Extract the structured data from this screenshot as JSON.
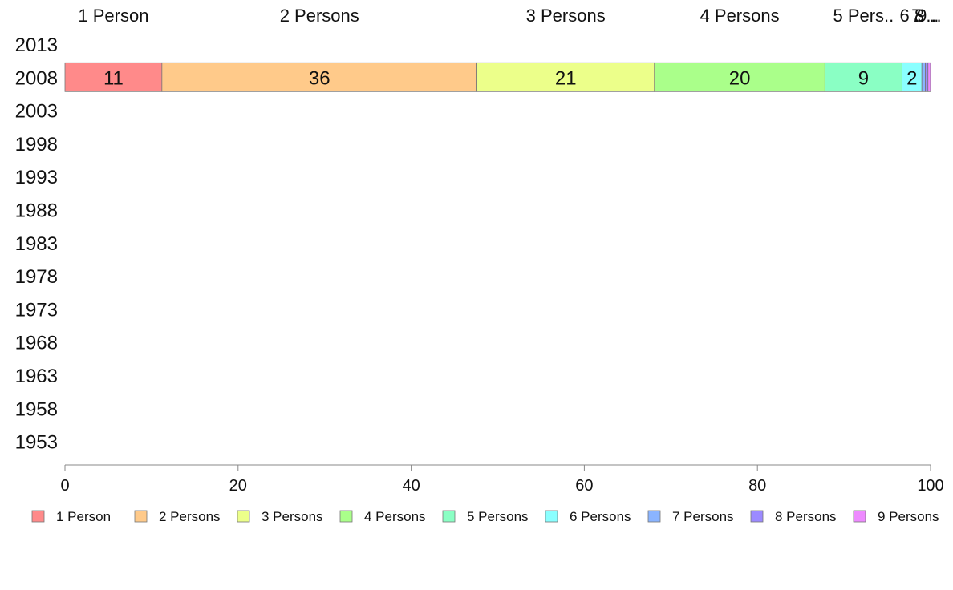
{
  "chart_data": {
    "type": "bar",
    "orientation": "horizontal",
    "stacked": true,
    "title": "",
    "xlabel": "",
    "ylabel": "",
    "xlim": [
      0,
      100
    ],
    "x_ticks": [
      "0",
      "20",
      "40",
      "60",
      "80",
      "100"
    ],
    "categories": [
      "2013",
      "2008",
      "2003",
      "1998",
      "1993",
      "1988",
      "1983",
      "1978",
      "1973",
      "1968",
      "1963",
      "1958",
      "1953"
    ],
    "grid": false,
    "legend_position": "bottom",
    "top_labels": [
      "1 Person",
      "2 Persons",
      "3 Persons",
      "4 Persons",
      "5 Pers..",
      "6 ..",
      "7 ..",
      "8 ..",
      "9 .."
    ],
    "series": [
      {
        "name": "1 Person",
        "color": "#ff8a8a",
        "values": [
          null,
          11.2,
          null,
          null,
          null,
          null,
          null,
          null,
          null,
          null,
          null,
          null,
          null
        ],
        "data_label": "11"
      },
      {
        "name": "2 Persons",
        "color": "#ffca8a",
        "values": [
          null,
          36.4,
          null,
          null,
          null,
          null,
          null,
          null,
          null,
          null,
          null,
          null,
          null
        ],
        "data_label": "36"
      },
      {
        "name": "3 Persons",
        "color": "#ecff8a",
        "values": [
          null,
          20.5,
          null,
          null,
          null,
          null,
          null,
          null,
          null,
          null,
          null,
          null,
          null
        ],
        "data_label": "21"
      },
      {
        "name": "4 Persons",
        "color": "#aaff8a",
        "values": [
          null,
          19.7,
          null,
          null,
          null,
          null,
          null,
          null,
          null,
          null,
          null,
          null,
          null
        ],
        "data_label": "20"
      },
      {
        "name": "5 Persons",
        "color": "#8affc4",
        "values": [
          null,
          8.9,
          null,
          null,
          null,
          null,
          null,
          null,
          null,
          null,
          null,
          null,
          null
        ],
        "data_label": "9"
      },
      {
        "name": "6 Persons",
        "color": "#8affff",
        "values": [
          null,
          2.3,
          null,
          null,
          null,
          null,
          null,
          null,
          null,
          null,
          null,
          null,
          null
        ],
        "data_label": "2"
      },
      {
        "name": "7 Persons",
        "color": "#8ab4ff",
        "values": [
          null,
          0.4,
          null,
          null,
          null,
          null,
          null,
          null,
          null,
          null,
          null,
          null,
          null
        ],
        "data_label": ""
      },
      {
        "name": "8 Persons",
        "color": "#9c8aff",
        "values": [
          null,
          0.3,
          null,
          null,
          null,
          null,
          null,
          null,
          null,
          null,
          null,
          null,
          null
        ],
        "data_label": ""
      },
      {
        "name": "9 Persons",
        "color": "#ee8aff",
        "values": [
          null,
          0.3,
          null,
          null,
          null,
          null,
          null,
          null,
          null,
          null,
          null,
          null,
          null
        ],
        "data_label": ""
      }
    ]
  }
}
